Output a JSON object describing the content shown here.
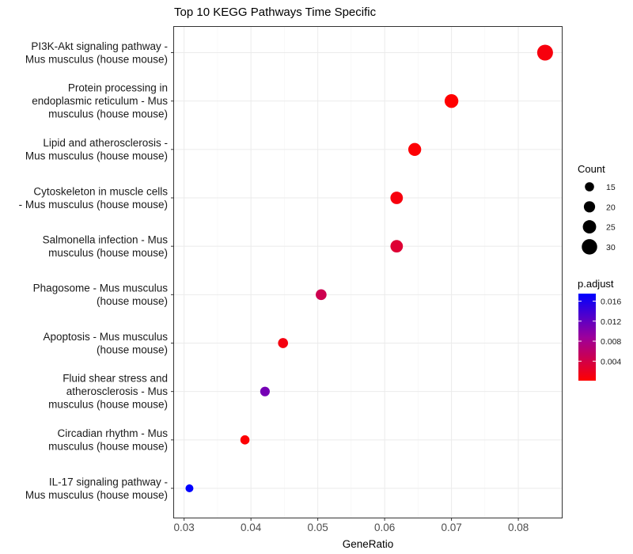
{
  "chart_data": {
    "type": "scatter",
    "title": "Top 10 KEGG Pathways Time Specific",
    "xlabel": "GeneRatio",
    "ylabel": "",
    "xlim": [
      0.0285,
      0.0865
    ],
    "xticks": [
      0.03,
      0.04,
      0.05,
      0.06,
      0.07,
      0.08
    ],
    "xtick_labels": [
      "0.03",
      "0.04",
      "0.05",
      "0.06",
      "0.07",
      "0.08"
    ],
    "grid": true,
    "legend_position": "right",
    "points": [
      {
        "label": [
          "PI3K-Akt signaling pathway -",
          "Mus musculus (house mouse)"
        ],
        "gene_ratio": 0.084,
        "count": 31,
        "p_adjust": 0.0008
      },
      {
        "label": [
          "Protein processing in",
          "endoplasmic reticulum - Mus",
          "musculus (house mouse)"
        ],
        "gene_ratio": 0.07,
        "count": 26,
        "p_adjust": 0.0001
      },
      {
        "label": [
          "Lipid and atherosclerosis -",
          "Mus musculus (house mouse)"
        ],
        "gene_ratio": 0.0645,
        "count": 24,
        "p_adjust": 0.0003
      },
      {
        "label": [
          "Cytoskeleton in muscle cells",
          "- Mus musculus (house mouse)"
        ],
        "gene_ratio": 0.0618,
        "count": 23,
        "p_adjust": 0.0008
      },
      {
        "label": [
          "Salmonella infection - Mus",
          "musculus (house mouse)"
        ],
        "gene_ratio": 0.0618,
        "count": 23,
        "p_adjust": 0.003
      },
      {
        "label": [
          "Phagosome - Mus musculus",
          "(house mouse)"
        ],
        "gene_ratio": 0.0505,
        "count": 19,
        "p_adjust": 0.0045
      },
      {
        "label": [
          "Apoptosis - Mus musculus",
          "(house mouse)"
        ],
        "gene_ratio": 0.0448,
        "count": 17,
        "p_adjust": 0.001
      },
      {
        "label": [
          "Fluid shear stress and",
          "atherosclerosis - Mus",
          "musculus (house mouse)"
        ],
        "gene_ratio": 0.0421,
        "count": 16,
        "p_adjust": 0.011
      },
      {
        "label": [
          "Circadian rhythm - Mus",
          "musculus (house mouse)"
        ],
        "gene_ratio": 0.0391,
        "count": 15,
        "p_adjust": 0.0003
      },
      {
        "label": [
          "IL-17 signaling pathway -",
          "Mus musculus (house mouse)"
        ],
        "gene_ratio": 0.0308,
        "count": 12,
        "p_adjust": 0.0175
      }
    ],
    "size_legend": {
      "title": "Count",
      "values": [
        15,
        20,
        25,
        30
      ],
      "labels": [
        "15",
        "20",
        "25",
        "30"
      ]
    },
    "color_legend": {
      "title": "p.adjust",
      "domain": [
        0.0001,
        0.0175
      ],
      "ticks": [
        0.016,
        0.012,
        0.008,
        0.004
      ],
      "tick_labels": [
        "0.016",
        "0.012",
        "0.008",
        "0.004"
      ],
      "low_color": "#FF0000",
      "high_color": "#0000FF"
    }
  }
}
